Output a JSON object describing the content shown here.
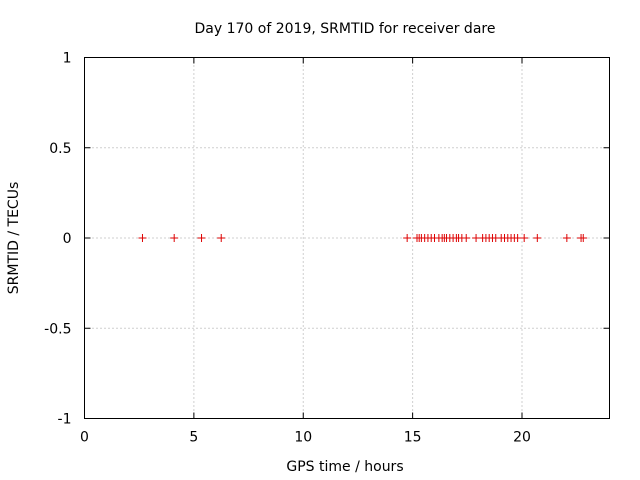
{
  "chart_data": {
    "type": "scatter",
    "title": "Day 170 of 2019, SRMTID for receiver dare",
    "xlabel": "GPS time / hours",
    "ylabel": "SRMTID / TECUs",
    "xlim": [
      0,
      24
    ],
    "ylim": [
      -1,
      1
    ],
    "xticks": [
      0,
      5,
      10,
      15,
      20
    ],
    "xtick_labels": [
      "0",
      "5",
      "10",
      "15",
      "20"
    ],
    "yticks": [
      -1,
      -0.5,
      0,
      0.5,
      1
    ],
    "ytick_labels": [
      "-1",
      "-0.5",
      "0",
      "0.5",
      "1"
    ],
    "grid": true,
    "marker": "plus",
    "marker_color": "#dd0000",
    "series": [
      {
        "x": [
          2.65,
          4.1,
          5.35,
          6.25,
          14.75,
          15.2,
          15.3,
          15.4,
          15.55,
          15.7,
          15.85,
          16.0,
          16.2,
          16.35,
          16.45,
          16.55,
          16.7,
          16.85,
          17.0,
          17.1,
          17.25,
          17.45,
          17.9,
          18.2,
          18.35,
          18.5,
          18.65,
          18.8,
          19.05,
          19.2,
          19.35,
          19.5,
          19.65,
          19.8,
          20.1,
          20.7,
          22.05,
          22.7,
          22.8
        ],
        "y": [
          0,
          0,
          0,
          0,
          0,
          0,
          0,
          0,
          0,
          0,
          0,
          0,
          0,
          0,
          0,
          0,
          0,
          0,
          0,
          0,
          0,
          0,
          0,
          0,
          0,
          0,
          0,
          0,
          0,
          0,
          0,
          0,
          0,
          0,
          0,
          0,
          0,
          0,
          0
        ]
      }
    ]
  }
}
